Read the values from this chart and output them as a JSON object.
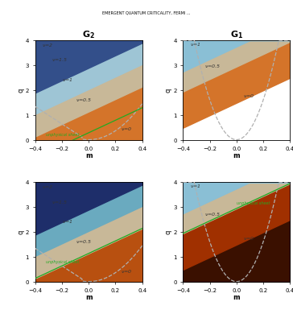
{
  "xlim": [
    -0.4,
    0.4
  ],
  "ylim": [
    0,
    4
  ],
  "xlabel": "m",
  "ylabel": "q",
  "xticks": [
    -0.4,
    -0.2,
    0.0,
    0.2,
    0.4
  ],
  "yticks": [
    0,
    1,
    2,
    3,
    4
  ],
  "header": "EMERGENT QUANTUM CRITICALITY, FERMI ...",
  "col_titles": [
    "G_2",
    "G_1"
  ],
  "c_G2_v2": "#334f8a",
  "c_G2_v15": "#9ec5d5",
  "c_G2_v1": "#c8b898",
  "c_G2_v05": "#d4742a",
  "c_G2_v0": "#ffffff",
  "c_G2_dark_v2": "#1e2e6a",
  "c_G2_dark_v15": "#6aaabf",
  "c_G2_dark_v1": "#c8b898",
  "c_G2_dark_v05": "#b85010",
  "c_G2_dark_v0": "#ffffff",
  "c_G1_vblue": "#8abfd5",
  "c_G1_v1": "#c8b898",
  "c_G1_v05": "#d4742a",
  "c_G1_v0": "#ffffff",
  "c_G1_dark_vblue": "#8abfd5",
  "c_G1_dark_v1": "#c8b898",
  "c_G1_dark_v05": "#a03000",
  "c_G1_dark_v0": "#3a1000",
  "green_color": "#22aa22",
  "dashed_color": "#b0b0b0",
  "label_color": "#333333",
  "label_fs": 4.5,
  "title_fs": 8,
  "header_fs": 3.5,
  "tick_fs": 5,
  "axis_fs": 6,
  "G2_b1_slope": 2.5,
  "G2_b1_int": 3.8,
  "G2_b2_slope": 2.5,
  "G2_b2_int": 2.9,
  "G2_b3_slope": 2.5,
  "G2_b3_int": 2.05,
  "G2_b4_slope": 2.5,
  "G2_b4_int": 1.15,
  "G2_b5_slope": 2.5,
  "G2_b5_int": 0.3,
  "G1_b1_slope": 2.5,
  "G1_b1_int": 3.75,
  "G1_b2_slope": 2.5,
  "G1_b2_int": 2.95,
  "G1_b3_slope": 2.5,
  "G1_b3_int": 1.5
}
